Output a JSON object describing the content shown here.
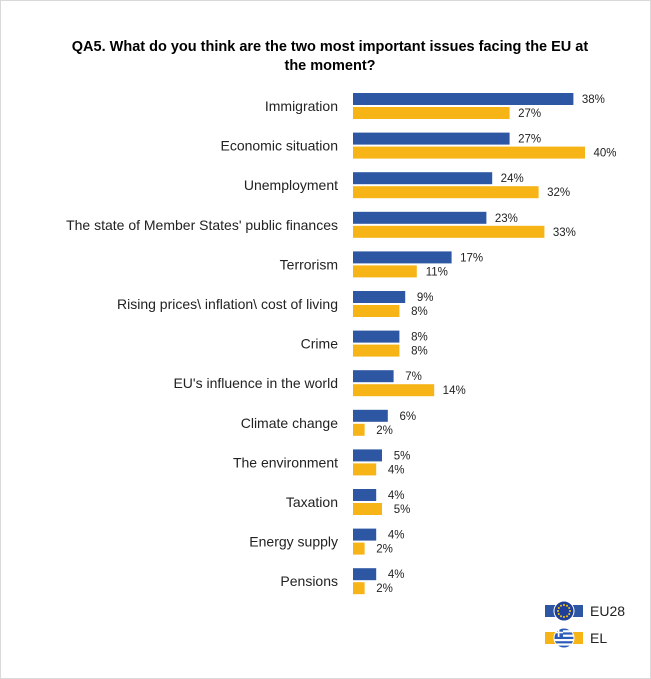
{
  "chart_data": {
    "type": "bar",
    "orientation": "horizontal",
    "title": "QA5. What do you think are the two most important issues facing the EU at the moment?",
    "categories": [
      "Immigration",
      "Economic situation",
      "Unemployment",
      "The state of Member States' public finances",
      "Terrorism",
      "Rising prices\\ inflation\\ cost of living",
      "Crime",
      "EU's influence in the world",
      "Climate change",
      "The environment",
      "Taxation",
      "Energy supply",
      "Pensions"
    ],
    "series": [
      {
        "name": "EU28",
        "color": "#2e57a3",
        "values": [
          38,
          27,
          24,
          23,
          17,
          9,
          8,
          7,
          6,
          5,
          4,
          4,
          4
        ]
      },
      {
        "name": "EL",
        "color": "#f7b416",
        "values": [
          27,
          40,
          32,
          33,
          11,
          8,
          8,
          14,
          2,
          4,
          5,
          2,
          2
        ]
      }
    ],
    "value_suffix": "%",
    "legend": {
      "position": "bottom-right",
      "icons": [
        "eu-flag-icon",
        "greek-flag-icon"
      ]
    },
    "grid": false
  }
}
